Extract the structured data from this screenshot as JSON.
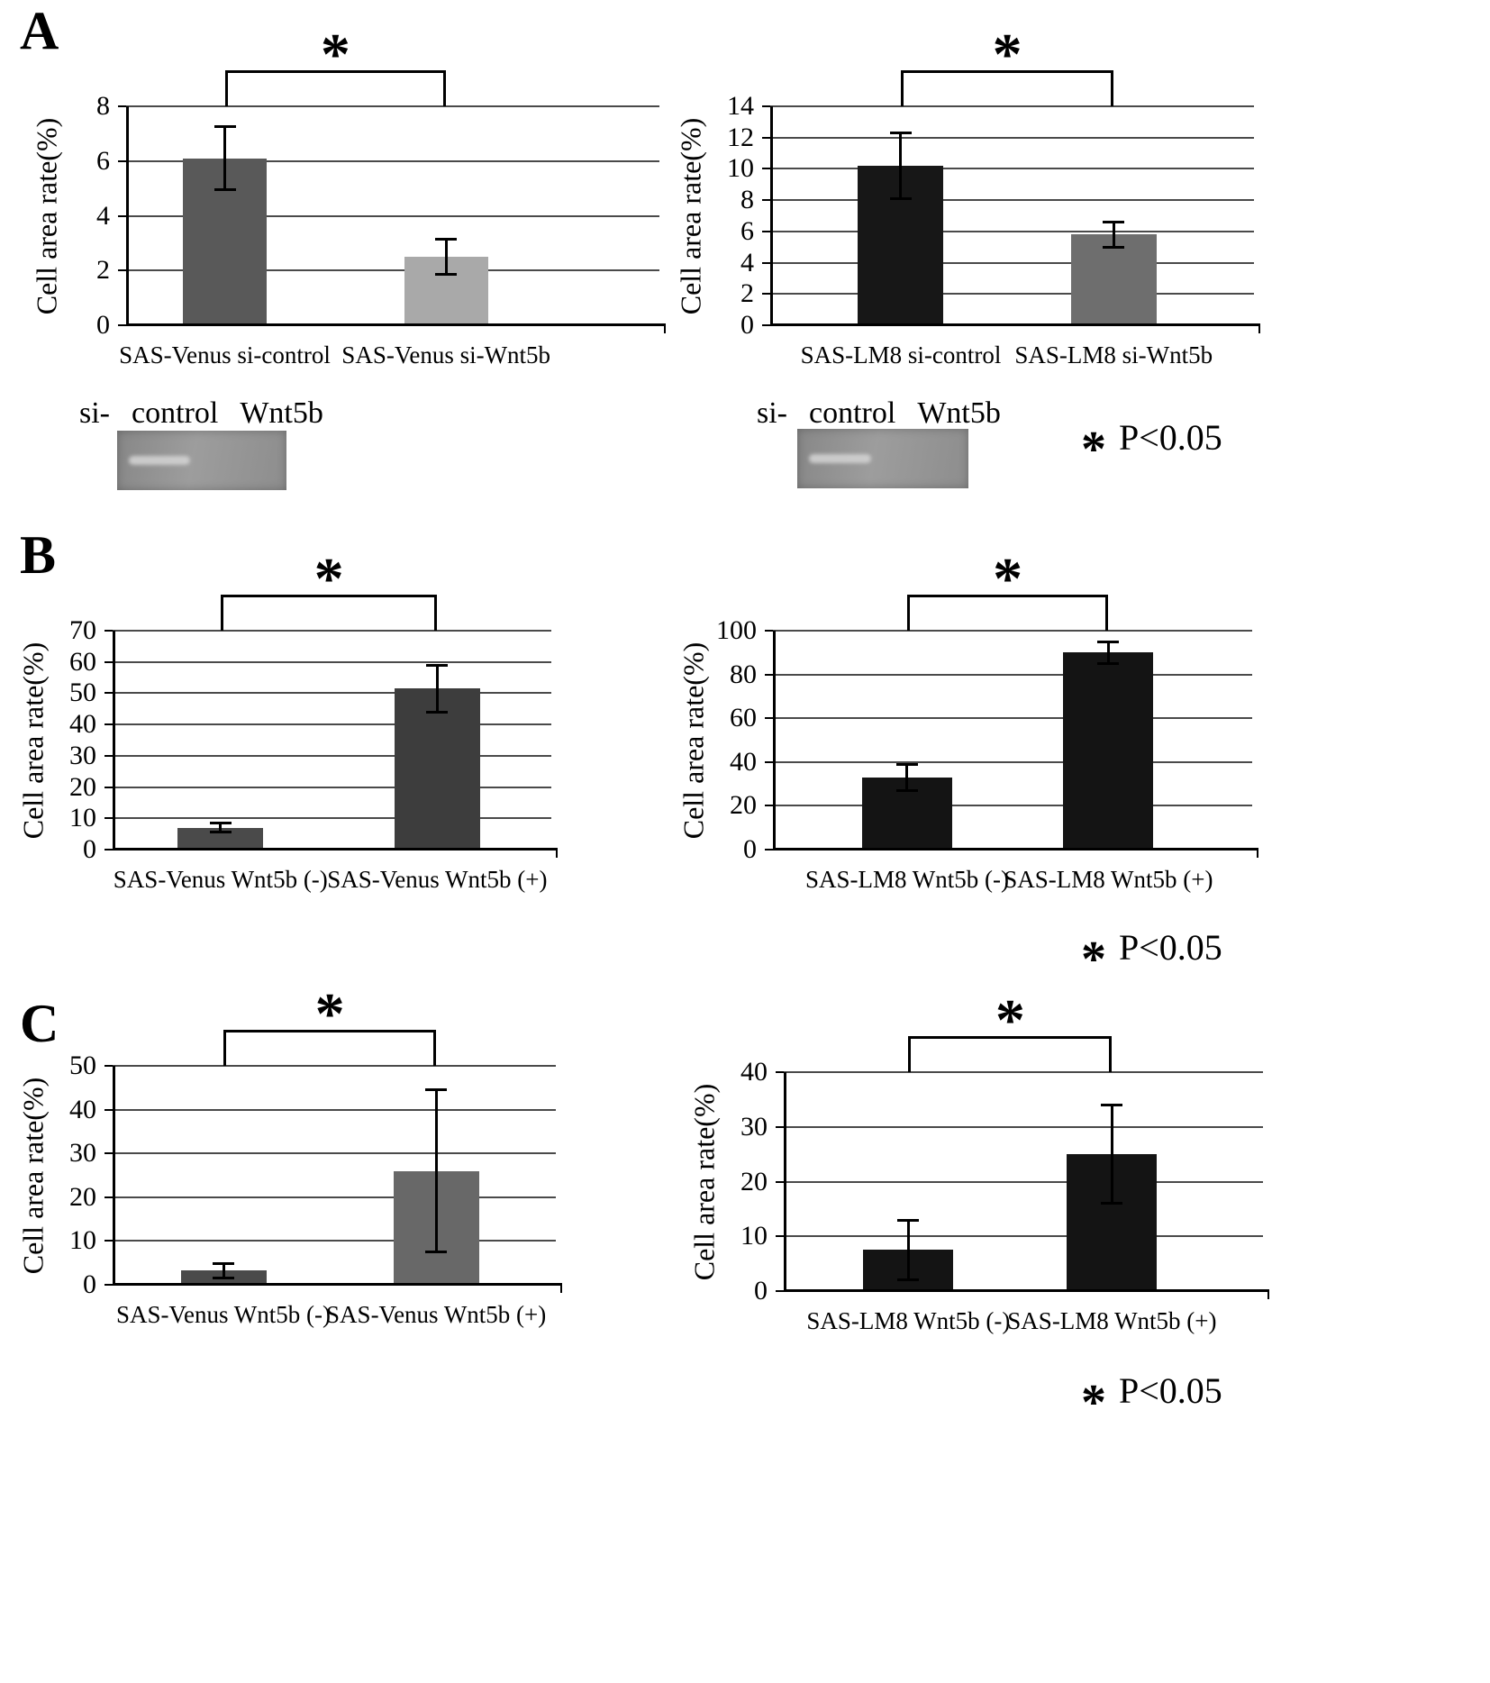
{
  "figure": {
    "panel_a_label": "A",
    "panel_b_label": "B",
    "panel_c_label": "C",
    "sig_marker": "*",
    "pvalue_note": "P<0.05"
  },
  "gel": {
    "prefix": "si-",
    "control": "control",
    "wnt5b": "Wnt5b"
  },
  "chart_data": [
    {
      "id": "panelA-left",
      "type": "bar",
      "title": "",
      "xlabel": "",
      "ylabel": "Cell area rate(%)",
      "ylim": [
        0,
        8
      ],
      "yticks": [
        0,
        2,
        4,
        6,
        8
      ],
      "categories": [
        "SAS-Venus si-control",
        "SAS-Venus si-Wnt5b"
      ],
      "values": [
        6.1,
        2.5
      ],
      "errors": [
        1.15,
        0.65
      ],
      "bar_colors": [
        "#595959",
        "#a9a9a9"
      ],
      "significance": "*",
      "grid": true,
      "legend": "none"
    },
    {
      "id": "panelA-right",
      "type": "bar",
      "title": "",
      "xlabel": "",
      "ylabel": "Cell area rate(%)",
      "ylim": [
        0,
        14
      ],
      "yticks": [
        0,
        2,
        4,
        6,
        8,
        10,
        12,
        14
      ],
      "categories": [
        "SAS-LM8 si-control",
        "SAS-LM8 si-Wnt5b"
      ],
      "values": [
        10.2,
        5.8
      ],
      "errors": [
        2.1,
        0.8
      ],
      "bar_colors": [
        "#171717",
        "#6e6e6e"
      ],
      "significance": "*",
      "grid": true,
      "legend": "none"
    },
    {
      "id": "panelB-left",
      "type": "bar",
      "title": "",
      "xlabel": "",
      "ylabel": "Cell area rate(%)",
      "ylim": [
        0,
        70
      ],
      "yticks": [
        0,
        10,
        20,
        30,
        40,
        50,
        60,
        70
      ],
      "categories": [
        "SAS-Venus Wnt5b (-)",
        "SAS-Venus Wnt5b (+)"
      ],
      "values": [
        7,
        51.5
      ],
      "errors": [
        1.5,
        7.5
      ],
      "bar_colors": [
        "#4a4a4a",
        "#3d3d3d"
      ],
      "significance": "*",
      "grid": true,
      "legend": "none"
    },
    {
      "id": "panelB-right",
      "type": "bar",
      "title": "",
      "xlabel": "",
      "ylabel": "Cell area rate(%)",
      "ylim": [
        0,
        100
      ],
      "yticks": [
        0,
        20,
        40,
        60,
        80,
        100
      ],
      "categories": [
        "SAS-LM8  Wnt5b (-)",
        "SAS-LM8  Wnt5b (+)"
      ],
      "values": [
        33,
        90
      ],
      "errors": [
        6,
        5
      ],
      "bar_colors": [
        "#141414",
        "#141414"
      ],
      "significance": "*",
      "grid": true,
      "legend": "none"
    },
    {
      "id": "panelC-left",
      "type": "bar",
      "title": "",
      "xlabel": "",
      "ylabel": "Cell area rate(%)",
      "ylim": [
        0,
        50
      ],
      "yticks": [
        0,
        10,
        20,
        30,
        40,
        50
      ],
      "categories": [
        "SAS-Venus Wnt5b (-)",
        "SAS-Venus Wnt5b (+)"
      ],
      "values": [
        3.2,
        26
      ],
      "errors": [
        1.6,
        18.5
      ],
      "bar_colors": [
        "#4a4a4a",
        "#686868"
      ],
      "significance": "*",
      "grid": true,
      "legend": "none"
    },
    {
      "id": "panelC-right",
      "type": "bar",
      "title": "",
      "xlabel": "",
      "ylabel": "Cell area rate(%)",
      "ylim": [
        0,
        40
      ],
      "yticks": [
        0,
        10,
        20,
        30,
        40
      ],
      "categories": [
        "SAS-LM8  Wnt5b (-)",
        "SAS-LM8  Wnt5b (+)"
      ],
      "values": [
        7.5,
        25
      ],
      "errors": [
        5.5,
        9
      ],
      "bar_colors": [
        "#141414",
        "#141414"
      ],
      "significance": "*",
      "grid": true,
      "legend": "none"
    }
  ]
}
